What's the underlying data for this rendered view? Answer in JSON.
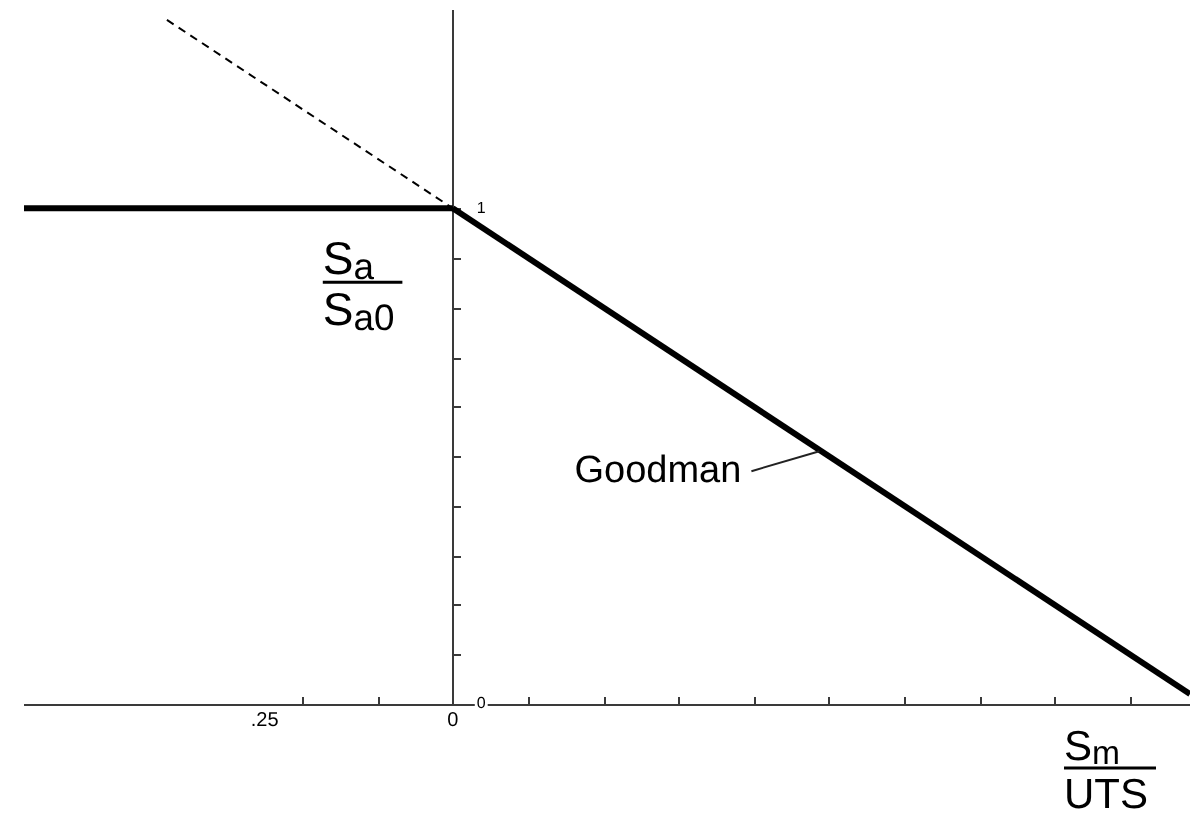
{
  "chart_data": {
    "type": "line",
    "xlabel": "S$_{m}$\nUTS",
    "ylabel": "S$_{a}$\nS$_{a0}$",
    "xlim": [
      -0.57,
      0.98
    ],
    "ylim": [
      0,
      1.4
    ],
    "xticks": [
      {
        "value": -0.25,
        "label": ".25"
      },
      {
        "value": -0.2,
        "label": null
      },
      {
        "value": -0.1,
        "label": null
      },
      0,
      {
        "value": 0.1,
        "label": null
      },
      {
        "value": 0.2,
        "label": null
      },
      {
        "value": 0.3,
        "label": null
      },
      {
        "value": 0.4,
        "label": null
      },
      {
        "value": 0.5,
        "label": null
      },
      {
        "value": 0.6,
        "label": null
      },
      {
        "value": 0.7,
        "label": null
      },
      {
        "value": 0.8,
        "label": null
      },
      {
        "value": 0.9,
        "label": null
      }
    ],
    "yticks": [
      0,
      {
        "value": 0.1,
        "label": null
      },
      {
        "value": 0.2,
        "label": null
      },
      {
        "value": 0.3,
        "label": null
      },
      {
        "value": 0.4,
        "label": null
      },
      {
        "value": 0.5,
        "label": null
      },
      {
        "value": 0.6,
        "label": null
      },
      {
        "value": 0.7,
        "label": null
      },
      {
        "value": 0.8,
        "label": null
      },
      {
        "value": 0.9,
        "label": null
      },
      1
    ],
    "series": [
      {
        "color": "#000000",
        "x": [
          -0.57,
          0
        ],
        "values": [
          1,
          1
        ]
      },
      {
        "name": "Goodman",
        "color": "#000000",
        "x": [
          0,
          0.98
        ],
        "values": [
          1,
          0.02
        ]
      },
      {
        "color": "#000000",
        "x": [
          -0.38,
          0
        ],
        "values": [
          1.38,
          1
        ],
        "line_style": "dashed"
      }
    ]
  }
}
